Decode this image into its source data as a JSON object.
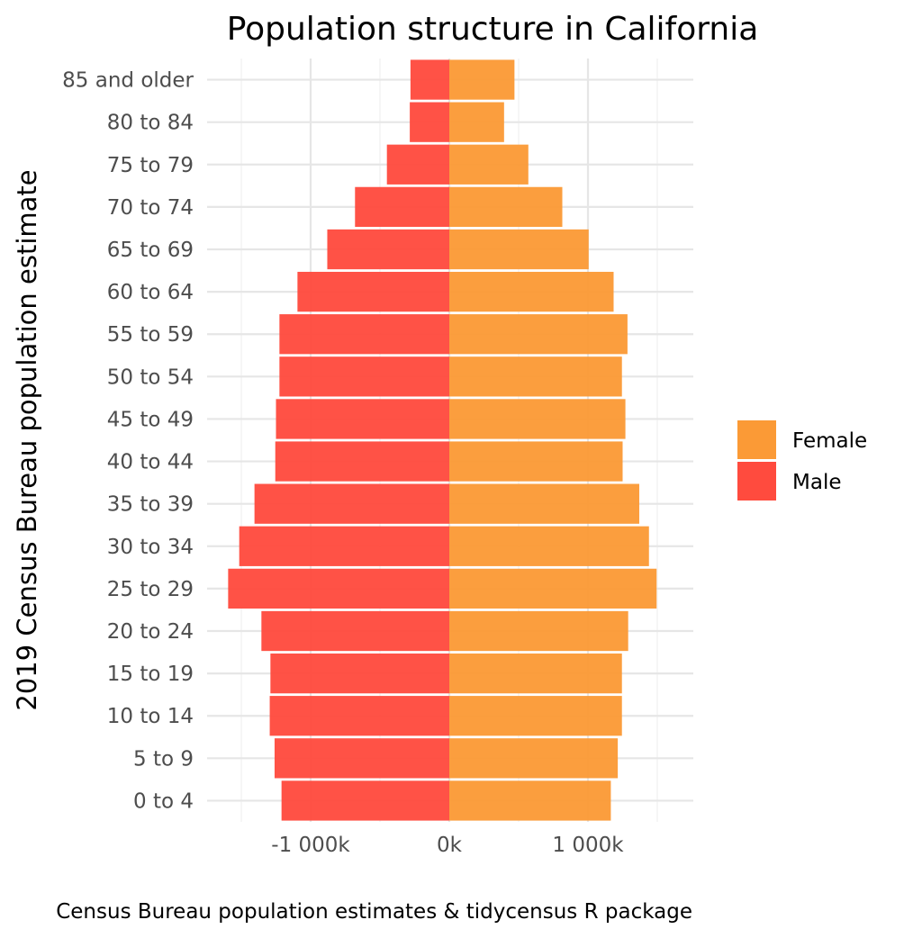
{
  "chart_data": {
    "type": "bar",
    "orientation": "horizontal",
    "title": "Population structure in California",
    "ylabel": "2019 Census Bureau population estimate",
    "xlabel": "",
    "caption": "Census Bureau population estimates & tidycensus R package",
    "categories": [
      "0 to 4",
      "5 to 9",
      "10 to 14",
      "15 to 19",
      "20 to 24",
      "25 to 29",
      "30 to 34",
      "35 to 39",
      "40 to 44",
      "45 to 49",
      "50 to 54",
      "55 to 59",
      "60 to 64",
      "65 to 69",
      "70 to 74",
      "75 to 79",
      "80 to 84",
      "85 and older"
    ],
    "xlim": [
      -1600000,
      1750000
    ],
    "x_ticks": [
      -1000000,
      0,
      1000000
    ],
    "x_tick_labels": [
      "-1 000k",
      "0k",
      "1 000k"
    ],
    "grid": true,
    "legend_position": "right",
    "series": [
      {
        "name": "Female",
        "color": "#FB9A36",
        "values": [
          1165000,
          1215000,
          1245000,
          1245000,
          1290000,
          1495000,
          1440000,
          1370000,
          1250000,
          1270000,
          1245000,
          1285000,
          1185000,
          1005000,
          815000,
          570000,
          395000,
          470000
        ]
      },
      {
        "name": "Male",
        "color": "#FF4B3E",
        "values": [
          -1210000,
          -1260000,
          -1295000,
          -1290000,
          -1355000,
          -1595000,
          -1515000,
          -1405000,
          -1255000,
          -1250000,
          -1225000,
          -1225000,
          -1095000,
          -880000,
          -680000,
          -450000,
          -285000,
          -280000
        ]
      }
    ]
  }
}
